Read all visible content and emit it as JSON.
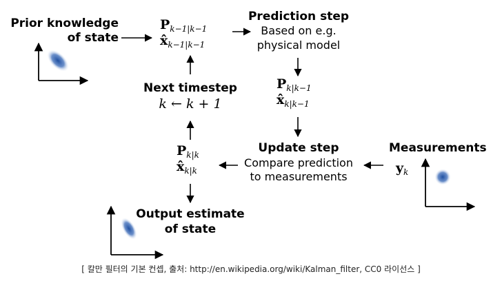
{
  "nodes": {
    "prior": {
      "title_line1": "Prior knowledge",
      "title_line2": "of state"
    },
    "prior_estimate": {
      "line1_base": "P",
      "line1_sub": "k−1|k−1",
      "line2_base": "x̂",
      "line2_sub": "k−1|k−1"
    },
    "prediction": {
      "title": "Prediction step",
      "line1": "Based on e.g.",
      "line2": "physical model"
    },
    "predicted_estimate": {
      "line1_base": "P",
      "line1_sub": "k|k−1",
      "line2_base": "x̂",
      "line2_sub": "k|k−1"
    },
    "next_timestep": {
      "title": "Next timestep",
      "formula": "k ← k + 1"
    },
    "update": {
      "title": "Update step",
      "line1": "Compare prediction",
      "line2": "to measurements"
    },
    "measurements": {
      "title": "Measurements",
      "symbol_base": "y",
      "symbol_sub": "k"
    },
    "updated_estimate": {
      "line1_base": "P",
      "line1_sub": "k|k",
      "line2_base": "x̂",
      "line2_sub": "k|k"
    },
    "output": {
      "title_line1": "Output estimate",
      "title_line2": "of state"
    }
  },
  "caption": "[ 칼만 필터의 기본 컨셉, 출처: http://en.wikipedia.org/wiki/Kalman_filter, CC0 라이선스 ]",
  "colors": {
    "blob": "#1f4fa0",
    "line": "#000000"
  }
}
